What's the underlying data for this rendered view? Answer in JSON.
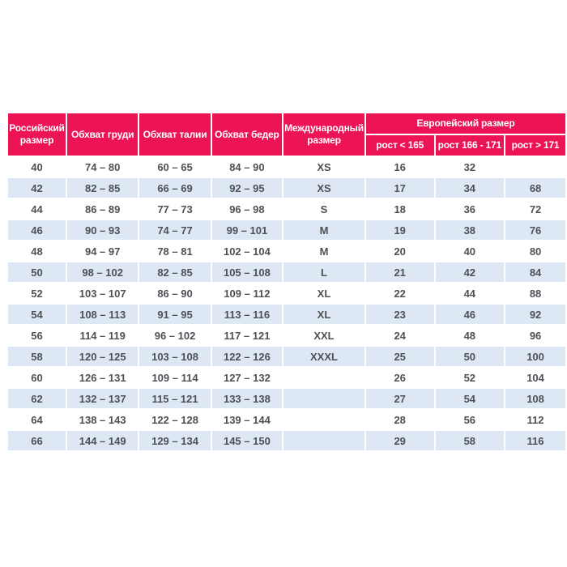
{
  "table": {
    "title_semantic": "size-conversion-chart",
    "colors": {
      "header_bg": "#ed1455",
      "header_text": "#ffffff",
      "row_alt_bg": "#dee8f4",
      "cell_text": "#4d5156",
      "page_bg": "#ffffff"
    },
    "header": {
      "russian_size": "Российский размер",
      "chest": "Обхват груди",
      "waist": "Обхват талии",
      "hips": "Обхват бедер",
      "international": "Международный размер",
      "european_group": "Европейский размер",
      "height_lt_165": "рост < 165",
      "height_166_171": "рост 166 - 171",
      "height_gt_171": "рост > 171"
    },
    "column_keys": [
      "russian-size",
      "chest",
      "waist",
      "hips",
      "international-size",
      "eu-height-lt-165",
      "eu-height-166-171",
      "eu-height-gt-171"
    ],
    "rows": [
      [
        "40",
        "74 – 80",
        "60 – 65",
        "84 – 90",
        "XS",
        "16",
        "32",
        ""
      ],
      [
        "42",
        "82 – 85",
        "66 – 69",
        "92 – 95",
        "XS",
        "17",
        "34",
        "68"
      ],
      [
        "44",
        "86 – 89",
        "77 – 73",
        "96 – 98",
        "S",
        "18",
        "36",
        "72"
      ],
      [
        "46",
        "90 – 93",
        "74 – 77",
        "99 – 101",
        "M",
        "19",
        "38",
        "76"
      ],
      [
        "48",
        "94 – 97",
        "78 – 81",
        "102 – 104",
        "M",
        "20",
        "40",
        "80"
      ],
      [
        "50",
        "98 – 102",
        "82 – 85",
        "105 – 108",
        "L",
        "21",
        "42",
        "84"
      ],
      [
        "52",
        "103 – 107",
        "86 – 90",
        "109 – 112",
        "XL",
        "22",
        "44",
        "88"
      ],
      [
        "54",
        "108 – 113",
        "91 – 95",
        "113 – 116",
        "XL",
        "23",
        "46",
        "92"
      ],
      [
        "56",
        "114 – 119",
        "96 – 102",
        "117 – 121",
        "XXL",
        "24",
        "48",
        "96"
      ],
      [
        "58",
        "120 – 125",
        "103 – 108",
        "122 – 126",
        "XXXL",
        "25",
        "50",
        "100"
      ],
      [
        "60",
        "126 – 131",
        "109 – 114",
        "127 – 132",
        "",
        "26",
        "52",
        "104"
      ],
      [
        "62",
        "132 – 137",
        "115 – 121",
        "133 – 138",
        "",
        "27",
        "54",
        "108"
      ],
      [
        "64",
        "138 – 143",
        "122 – 128",
        "139 – 144",
        "",
        "28",
        "56",
        "112"
      ],
      [
        "66",
        "144 – 149",
        "129 – 134",
        "145 – 150",
        "",
        "29",
        "58",
        "116"
      ]
    ]
  }
}
